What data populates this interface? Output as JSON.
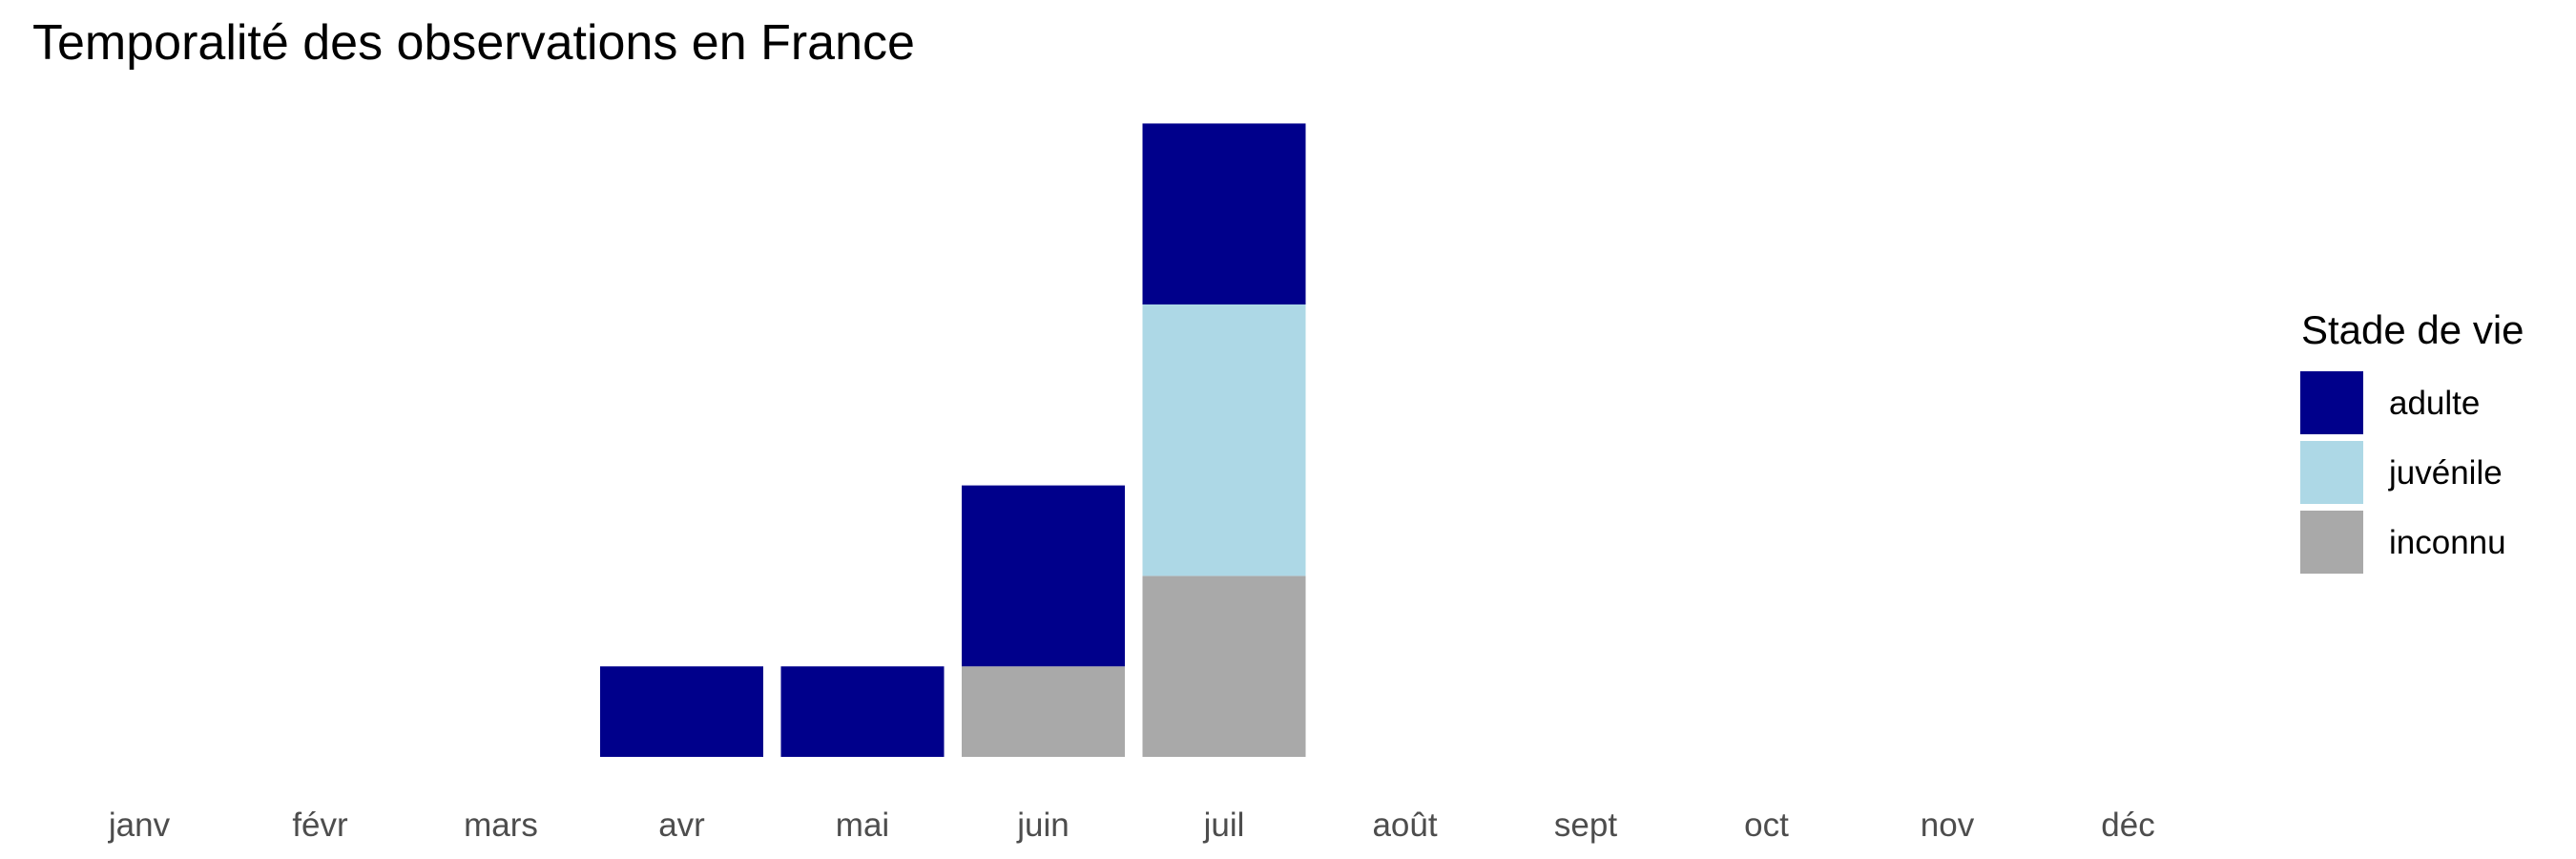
{
  "chart_data": {
    "type": "bar",
    "stacked": true,
    "title": "Temporalité des observations en France",
    "xlabel": "",
    "ylabel": "",
    "categories": [
      "janv",
      "févr",
      "mars",
      "avr",
      "mai",
      "juin",
      "juil",
      "août",
      "sept",
      "oct",
      "nov",
      "déc"
    ],
    "series": [
      {
        "name": "inconnu",
        "color": "#a9a9a9",
        "values": [
          0,
          0,
          0,
          0,
          0,
          1,
          2,
          0,
          0,
          0,
          0,
          0
        ]
      },
      {
        "name": "juvénile",
        "color": "#add8e6",
        "values": [
          0,
          0,
          0,
          0,
          0,
          0,
          3,
          0,
          0,
          0,
          0,
          0
        ]
      },
      {
        "name": "adulte",
        "color": "#00008b",
        "values": [
          0,
          0,
          0,
          1,
          1,
          2,
          2,
          0,
          0,
          0,
          0,
          0
        ]
      }
    ],
    "ylim": [
      0,
      7
    ],
    "grid": false,
    "y_axis_visible": false,
    "legend": {
      "title": "Stade de vie",
      "placement": "right",
      "order": [
        "adulte",
        "juvénile",
        "inconnu"
      ]
    }
  }
}
